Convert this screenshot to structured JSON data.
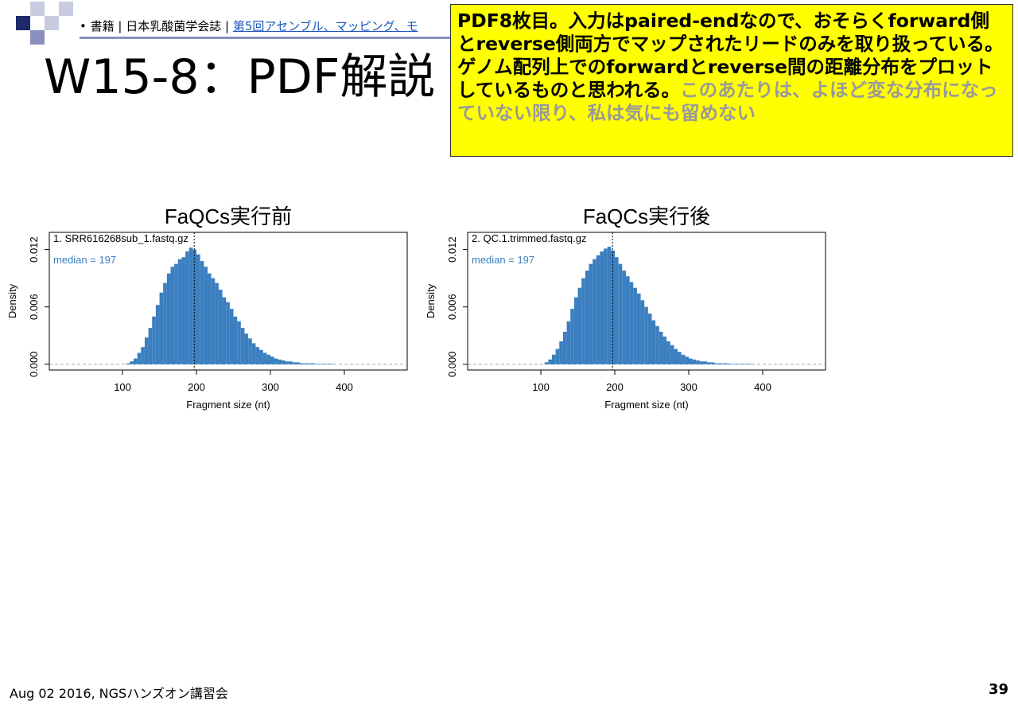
{
  "header": {
    "breadcrumb_plain": "書籍 | 日本乳酸菌学会誌 |",
    "breadcrumb_link": "第5回アセンブル、マッピング、モ"
  },
  "title": "W15-8：PDF解説",
  "note": {
    "text_main": "PDF8枚目。入力はpaired-endなので、おそらくforward側とreverse側両方でマップされたリードのみを取り扱っている。ゲノム配列上でのforwardとreverse間の距離分布をプロットしているものと思われる。",
    "text_muted": "このあたりは、よほど変な分布になっていない限り、私は気にも留めない"
  },
  "footer": {
    "left": "Aug 02 2016, NGSハンズオン講習会",
    "page": "39"
  },
  "chart_data": [
    {
      "type": "histogram",
      "title": "FaQCs実行前",
      "subtitle": "1. SRR616268sub_1.fastq.gz",
      "annotation": "median = 197",
      "median": 197,
      "xlabel": "Fragment size (nt)",
      "ylabel": "Density",
      "color": "#3b7fc0",
      "xlim": [
        1,
        485
      ],
      "ylim": [
        -0.0006,
        0.0138
      ],
      "xticks": [
        100,
        200,
        300,
        400
      ],
      "yticks": [
        {
          "value": 0,
          "label": "0.000"
        },
        {
          "value": 0.006,
          "label": "0.006"
        },
        {
          "value": 0.012,
          "label": "0.012"
        }
      ],
      "bins": [
        105,
        110,
        115,
        120,
        125,
        130,
        135,
        140,
        145,
        150,
        155,
        160,
        165,
        170,
        175,
        180,
        185,
        190,
        195,
        200,
        205,
        210,
        215,
        220,
        225,
        230,
        235,
        240,
        245,
        250,
        255,
        260,
        265,
        270,
        275,
        280,
        285,
        290,
        295,
        300,
        305,
        310,
        315,
        320,
        325,
        330,
        335,
        340,
        345,
        350,
        355,
        360,
        365,
        370,
        375,
        380,
        385
      ],
      "values": [
        0.0001,
        0.0003,
        0.0006,
        0.0012,
        0.0018,
        0.0028,
        0.0038,
        0.005,
        0.0062,
        0.0075,
        0.0085,
        0.0095,
        0.0102,
        0.0105,
        0.011,
        0.0112,
        0.0118,
        0.0122,
        0.012,
        0.0115,
        0.0108,
        0.0102,
        0.0095,
        0.009,
        0.0085,
        0.0078,
        0.007,
        0.0065,
        0.0058,
        0.005,
        0.0045,
        0.0038,
        0.0032,
        0.0027,
        0.0022,
        0.0018,
        0.0015,
        0.0012,
        0.001,
        0.0008,
        0.0006,
        0.0005,
        0.0004,
        0.0003,
        0.0003,
        0.0002,
        0.0002,
        0.0001,
        0.0001,
        0.0001,
        0.0001,
        5e-05,
        5e-05,
        5e-05,
        5e-05,
        5e-05
      ]
    },
    {
      "type": "histogram",
      "title": "FaQCs実行後",
      "subtitle": "2. QC.1.trimmed.fastq.gz",
      "annotation": "median = 197",
      "median": 197,
      "xlabel": "Fragment size (nt)",
      "ylabel": "Density",
      "color": "#3b7fc0",
      "xlim": [
        1,
        485
      ],
      "ylim": [
        -0.0006,
        0.0138
      ],
      "xticks": [
        100,
        200,
        300,
        400
      ],
      "yticks": [
        {
          "value": 0,
          "label": "0.000"
        },
        {
          "value": 0.006,
          "label": "0.006"
        },
        {
          "value": 0.012,
          "label": "0.012"
        }
      ],
      "bins": [
        105,
        110,
        115,
        120,
        125,
        130,
        135,
        140,
        145,
        150,
        155,
        160,
        165,
        170,
        175,
        180,
        185,
        190,
        195,
        200,
        205,
        210,
        215,
        220,
        225,
        230,
        235,
        240,
        245,
        250,
        255,
        260,
        265,
        270,
        275,
        280,
        285,
        290,
        295,
        300,
        305,
        310,
        315,
        320,
        325,
        330,
        335,
        340,
        345,
        350,
        355,
        360,
        365,
        370,
        375,
        380,
        385
      ],
      "values": [
        0.0002,
        0.0005,
        0.001,
        0.0016,
        0.0024,
        0.0034,
        0.0045,
        0.0058,
        0.007,
        0.008,
        0.009,
        0.0098,
        0.0105,
        0.011,
        0.0114,
        0.0118,
        0.0121,
        0.0123,
        0.0119,
        0.0112,
        0.0105,
        0.0098,
        0.0092,
        0.0086,
        0.008,
        0.0074,
        0.0067,
        0.006,
        0.0053,
        0.0046,
        0.004,
        0.0034,
        0.0029,
        0.0024,
        0.002,
        0.0016,
        0.0013,
        0.001,
        0.0008,
        0.0006,
        0.0005,
        0.0004,
        0.0003,
        0.0003,
        0.0002,
        0.0002,
        0.0001,
        0.0001,
        0.0001,
        0.0001,
        5e-05,
        5e-05,
        5e-05,
        5e-05,
        5e-05,
        5e-05
      ]
    }
  ]
}
